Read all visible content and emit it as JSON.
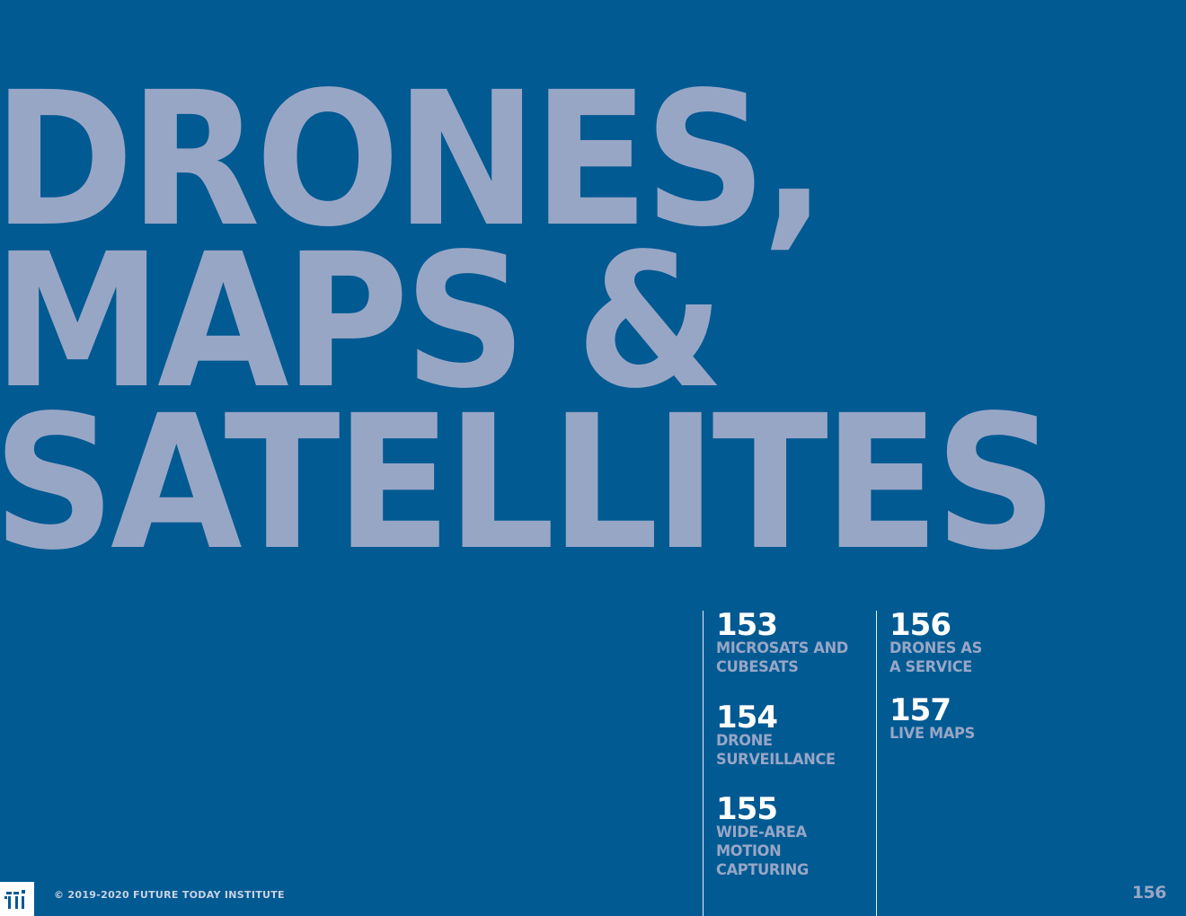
{
  "title": {
    "line1": "DRONES,",
    "line2": "MAPS &",
    "line3": "SATELLITES"
  },
  "toc": {
    "column1": [
      {
        "number": "153",
        "label": "MICROSATS AND\nCUBESATS"
      },
      {
        "number": "154",
        "label": "DRONE\nSURVEILLANCE"
      },
      {
        "number": "155",
        "label": "WIDE-AREA\nMOTION\nCAPTURING"
      }
    ],
    "column2": [
      {
        "number": "156",
        "label": "DRONES AS\nA SERVICE"
      },
      {
        "number": "157",
        "label": "LIVE MAPS"
      }
    ]
  },
  "footer": {
    "copyright": "© 2019-2020 FUTURE TODAY INSTITUTE",
    "page_number": "156",
    "logo_icon": "fti-logo-icon"
  },
  "colors": {
    "background": "#025a92",
    "title": "#98a6c6",
    "toc_number": "#ffffff",
    "toc_label": "#98a6c6"
  }
}
